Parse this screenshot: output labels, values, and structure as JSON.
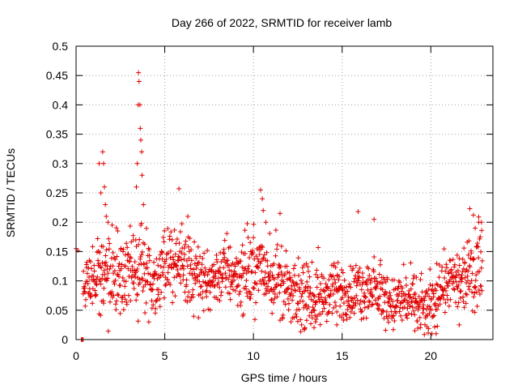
{
  "chart_data": {
    "type": "scatter",
    "title": "Day 266 of 2022, SRMTID for receiver lamb",
    "xlabel": "GPS time / hours",
    "ylabel": "SRMTID / TECUs",
    "xlim": [
      0,
      23.5
    ],
    "ylim": [
      0,
      0.5
    ],
    "x_ticks": [
      0,
      5,
      10,
      15,
      20
    ],
    "x_tick_labels": [
      "0",
      "5",
      "10",
      "15",
      "20"
    ],
    "y_ticks": [
      0,
      0.05,
      0.1,
      0.15,
      0.2,
      0.25,
      0.3,
      0.35,
      0.4,
      0.45,
      0.5
    ],
    "y_tick_labels": [
      "0",
      "0.05",
      "0.1",
      "0.15",
      "0.2",
      "0.25",
      "0.3",
      "0.35",
      "0.4",
      "0.45",
      "0.5"
    ],
    "grid": true,
    "marker": "plus",
    "color": "#e00000",
    "trend": {
      "x": [
        0.4,
        0.6,
        1.0,
        1.5,
        2.0,
        2.5,
        3.0,
        3.5,
        4.0,
        4.5,
        5.0,
        5.5,
        6.0,
        6.5,
        7.0,
        7.5,
        8.0,
        8.5,
        9.0,
        9.5,
        10.0,
        10.5,
        11.0,
        11.5,
        12.0,
        12.5,
        13.0,
        13.5,
        14.0,
        14.5,
        15.0,
        15.5,
        16.0,
        16.5,
        17.0,
        17.5,
        18.0,
        18.5,
        19.0,
        19.5,
        20.0,
        20.5,
        21.0,
        21.5,
        22.0,
        22.5,
        22.9
      ],
      "y": [
        0.1,
        0.1,
        0.1,
        0.11,
        0.1,
        0.11,
        0.11,
        0.12,
        0.11,
        0.1,
        0.13,
        0.14,
        0.13,
        0.11,
        0.1,
        0.1,
        0.11,
        0.12,
        0.11,
        0.11,
        0.12,
        0.12,
        0.11,
        0.1,
        0.08,
        0.07,
        0.07,
        0.07,
        0.07,
        0.08,
        0.08,
        0.08,
        0.08,
        0.09,
        0.08,
        0.07,
        0.06,
        0.07,
        0.06,
        0.05,
        0.05,
        0.09,
        0.1,
        0.09,
        0.1,
        0.12,
        0.14
      ],
      "spread": [
        0.03,
        0.03,
        0.03,
        0.04,
        0.04,
        0.04,
        0.04,
        0.05,
        0.04,
        0.04,
        0.04,
        0.04,
        0.04,
        0.04,
        0.03,
        0.03,
        0.03,
        0.04,
        0.03,
        0.04,
        0.04,
        0.04,
        0.04,
        0.04,
        0.03,
        0.03,
        0.03,
        0.03,
        0.03,
        0.03,
        0.03,
        0.03,
        0.03,
        0.03,
        0.03,
        0.03,
        0.03,
        0.03,
        0.03,
        0.03,
        0.03,
        0.03,
        0.03,
        0.03,
        0.03,
        0.04,
        0.04
      ]
    },
    "points": [
      [
        0.0,
        0.155
      ],
      [
        0.1,
        0.152
      ],
      [
        0.3,
        0.0
      ],
      [
        0.35,
        0.0
      ],
      [
        0.4,
        0.0
      ],
      [
        1.3,
        0.3
      ],
      [
        1.4,
        0.25
      ],
      [
        1.5,
        0.32
      ],
      [
        1.55,
        0.3
      ],
      [
        1.6,
        0.26
      ],
      [
        1.65,
        0.23
      ],
      [
        1.7,
        0.21
      ],
      [
        1.8,
        0.2
      ],
      [
        3.4,
        0.26
      ],
      [
        3.45,
        0.3
      ],
      [
        3.5,
        0.4
      ],
      [
        3.52,
        0.455
      ],
      [
        3.55,
        0.44
      ],
      [
        3.6,
        0.4
      ],
      [
        3.62,
        0.36
      ],
      [
        3.65,
        0.34
      ],
      [
        3.7,
        0.32
      ],
      [
        3.72,
        0.28
      ],
      [
        3.8,
        0.23
      ],
      [
        5.8,
        0.257
      ],
      [
        6.3,
        0.21
      ],
      [
        10.4,
        0.255
      ],
      [
        10.5,
        0.24
      ],
      [
        10.55,
        0.22
      ],
      [
        10.7,
        0.2
      ],
      [
        11.5,
        0.215
      ],
      [
        15.9,
        0.218
      ],
      [
        16.8,
        0.205
      ],
      [
        22.2,
        0.223
      ],
      [
        22.5,
        0.19
      ],
      [
        22.7,
        0.2
      ],
      [
        22.85,
        0.2
      ],
      [
        19.1,
        0.015
      ],
      [
        19.4,
        0.02
      ],
      [
        20.3,
        0.01
      ],
      [
        14.7,
        0.025
      ],
      [
        12.9,
        0.02
      ],
      [
        13.5,
        0.03
      ],
      [
        21.6,
        0.025
      ]
    ]
  }
}
